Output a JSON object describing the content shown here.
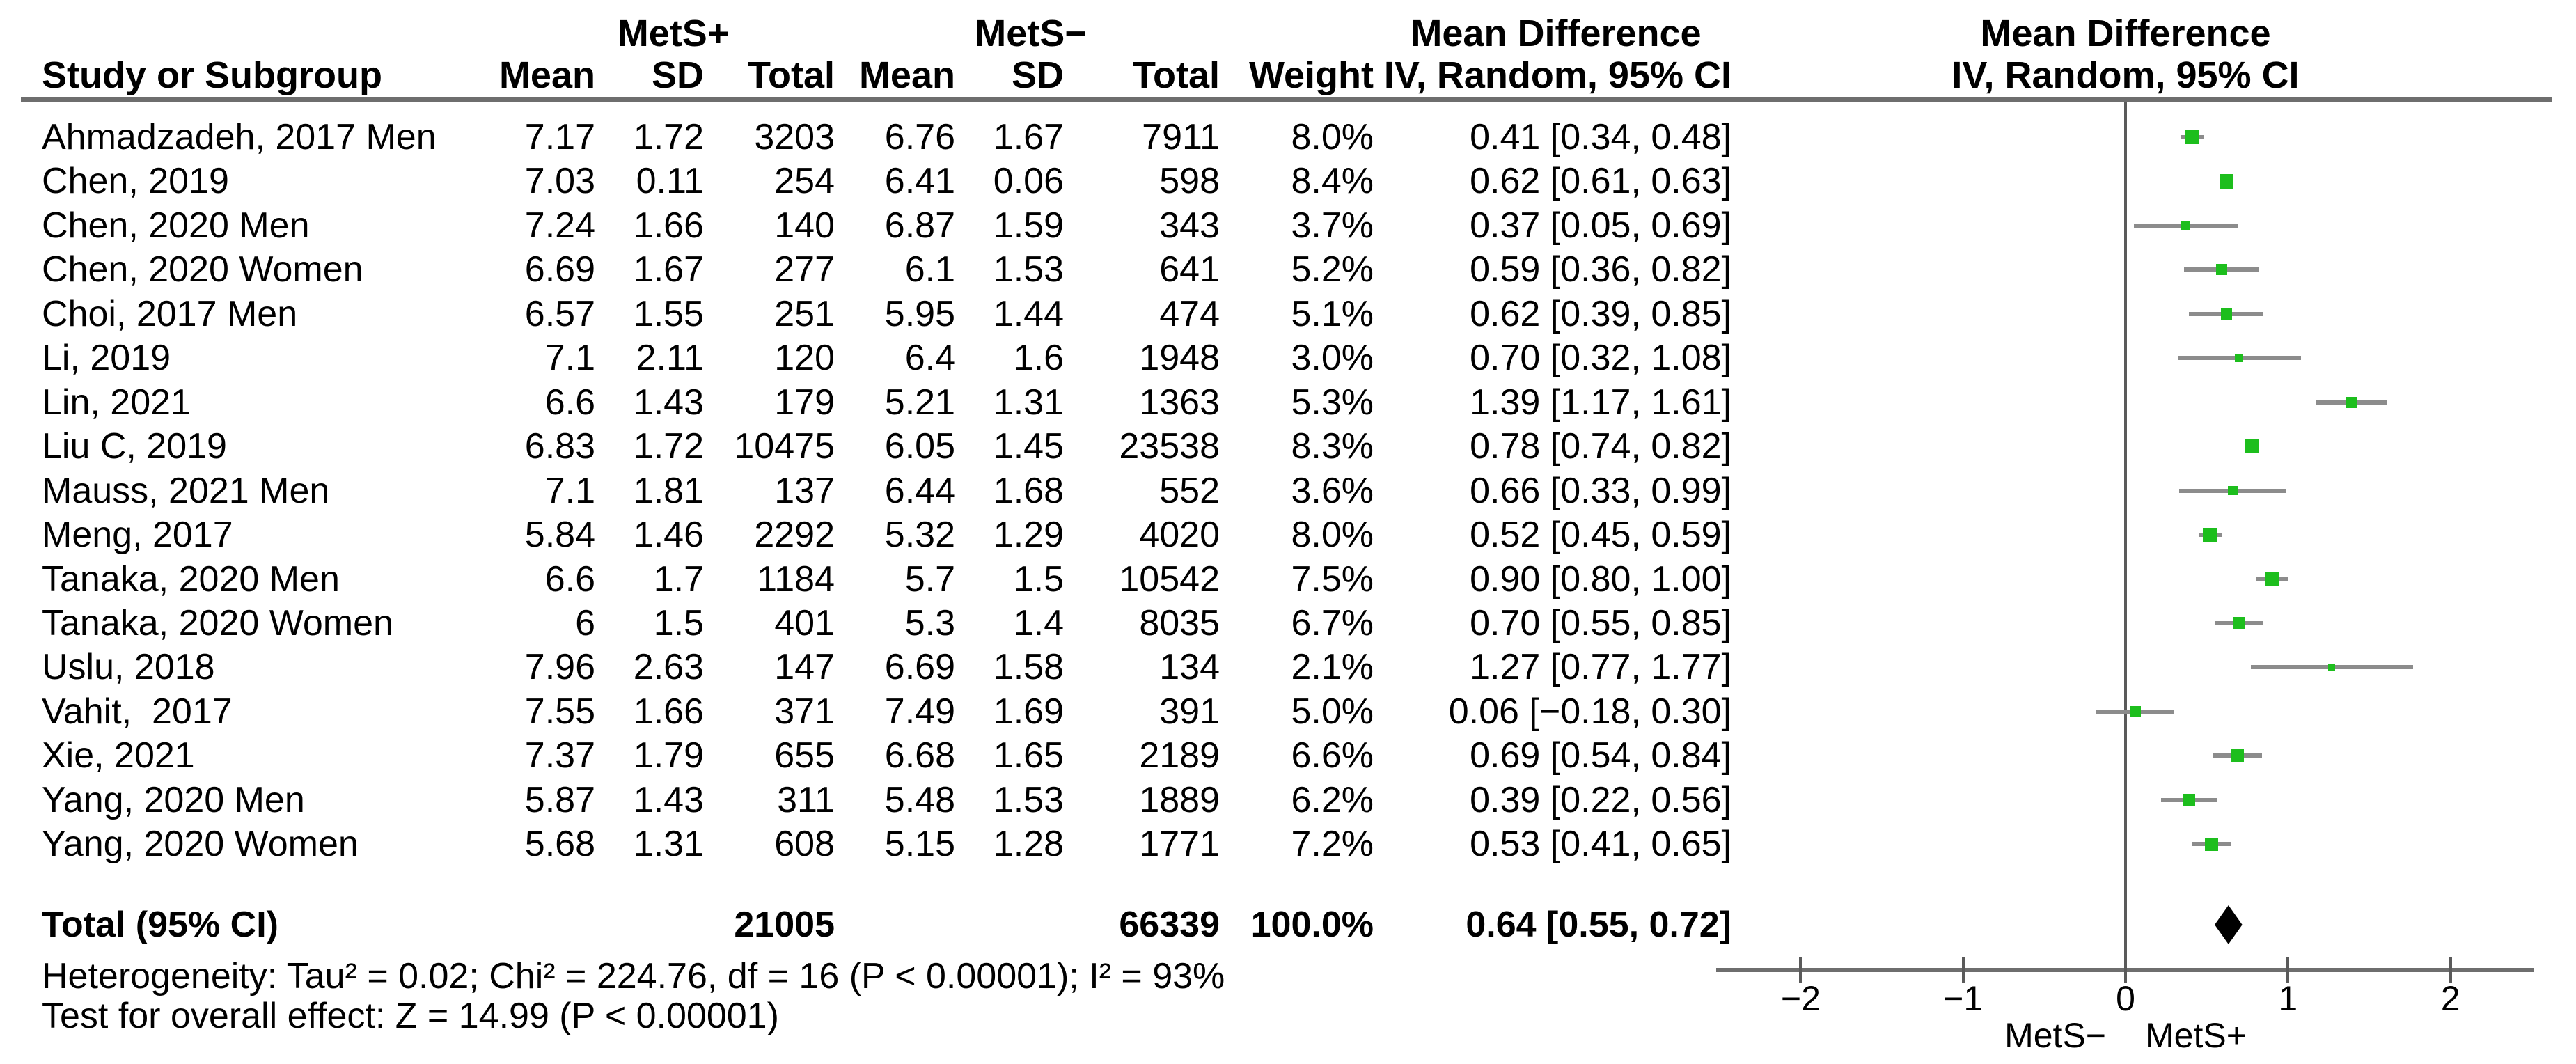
{
  "meta": {
    "marker_color": "#1dbe1d",
    "ci_line_color": "#8c8c8c",
    "rule_color": "#6e6e6e",
    "diamond_color": "#000000",
    "background": "#ffffff"
  },
  "header": {
    "study_col": "Study or Subgroup",
    "group1_label": "MetS+",
    "group2_label": "MetS−",
    "mean_label": "Mean",
    "sd_label": "SD",
    "total_label": "Total",
    "weight_label": "Weight",
    "md_col_line1": "Mean Difference",
    "md_col_line2": "IV, Random, 95% CI",
    "plot_col_line1": "Mean Difference",
    "plot_col_line2": "IV, Random, 95% CI"
  },
  "chart_data": {
    "type": "forest",
    "effect_measure": "Mean Difference, IV, Random, 95% CI",
    "axis": {
      "ticks": [
        -2,
        -1,
        0,
        1,
        2
      ],
      "xlim": [
        -2.5,
        2.5
      ],
      "left_label": "MetS−",
      "right_label": "MetS+",
      "zero_reference": 0
    },
    "studies": [
      {
        "name": "Ahmadzadeh, 2017 Men",
        "mean1": "7.17",
        "sd1": "1.72",
        "total1": "3203",
        "mean2": "6.76",
        "sd2": "1.67",
        "total2": "7911",
        "weight": 8.0,
        "md": 0.41,
        "lo": 0.34,
        "hi": 0.48
      },
      {
        "name": "Chen, 2019",
        "mean1": "7.03",
        "sd1": "0.11",
        "total1": "254",
        "mean2": "6.41",
        "sd2": "0.06",
        "total2": "598",
        "weight": 8.4,
        "md": 0.62,
        "lo": 0.61,
        "hi": 0.63
      },
      {
        "name": "Chen, 2020 Men",
        "mean1": "7.24",
        "sd1": "1.66",
        "total1": "140",
        "mean2": "6.87",
        "sd2": "1.59",
        "total2": "343",
        "weight": 3.7,
        "md": 0.37,
        "lo": 0.05,
        "hi": 0.69
      },
      {
        "name": "Chen, 2020 Women",
        "mean1": "6.69",
        "sd1": "1.67",
        "total1": "277",
        "mean2": "6.1",
        "sd2": "1.53",
        "total2": "641",
        "weight": 5.2,
        "md": 0.59,
        "lo": 0.36,
        "hi": 0.82
      },
      {
        "name": "Choi, 2017 Men",
        "mean1": "6.57",
        "sd1": "1.55",
        "total1": "251",
        "mean2": "5.95",
        "sd2": "1.44",
        "total2": "474",
        "weight": 5.1,
        "md": 0.62,
        "lo": 0.39,
        "hi": 0.85
      },
      {
        "name": "Li, 2019",
        "mean1": "7.1",
        "sd1": "2.11",
        "total1": "120",
        "mean2": "6.4",
        "sd2": "1.6",
        "total2": "1948",
        "weight": 3.0,
        "md": 0.7,
        "lo": 0.32,
        "hi": 1.08
      },
      {
        "name": "Lin, 2021",
        "mean1": "6.6",
        "sd1": "1.43",
        "total1": "179",
        "mean2": "5.21",
        "sd2": "1.31",
        "total2": "1363",
        "weight": 5.3,
        "md": 1.39,
        "lo": 1.17,
        "hi": 1.61
      },
      {
        "name": "Liu C, 2019",
        "mean1": "6.83",
        "sd1": "1.72",
        "total1": "10475",
        "mean2": "6.05",
        "sd2": "1.45",
        "total2": "23538",
        "weight": 8.3,
        "md": 0.78,
        "lo": 0.74,
        "hi": 0.82
      },
      {
        "name": "Mauss, 2021 Men",
        "mean1": "7.1",
        "sd1": "1.81",
        "total1": "137",
        "mean2": "6.44",
        "sd2": "1.68",
        "total2": "552",
        "weight": 3.6,
        "md": 0.66,
        "lo": 0.33,
        "hi": 0.99
      },
      {
        "name": "Meng, 2017",
        "mean1": "5.84",
        "sd1": "1.46",
        "total1": "2292",
        "mean2": "5.32",
        "sd2": "1.29",
        "total2": "4020",
        "weight": 8.0,
        "md": 0.52,
        "lo": 0.45,
        "hi": 0.59
      },
      {
        "name": "Tanaka, 2020 Men",
        "mean1": "6.6",
        "sd1": "1.7",
        "total1": "1184",
        "mean2": "5.7",
        "sd2": "1.5",
        "total2": "10542",
        "weight": 7.5,
        "md": 0.9,
        "lo": 0.8,
        "hi": 1.0
      },
      {
        "name": "Tanaka, 2020 Women",
        "mean1": "6",
        "sd1": "1.5",
        "total1": "401",
        "mean2": "5.3",
        "sd2": "1.4",
        "total2": "8035",
        "weight": 6.7,
        "md": 0.7,
        "lo": 0.55,
        "hi": 0.85
      },
      {
        "name": "Uslu, 2018",
        "mean1": "7.96",
        "sd1": "2.63",
        "total1": "147",
        "mean2": "6.69",
        "sd2": "1.58",
        "total2": "134",
        "weight": 2.1,
        "md": 1.27,
        "lo": 0.77,
        "hi": 1.77
      },
      {
        "name": "Vahit,  2017",
        "mean1": "7.55",
        "sd1": "1.66",
        "total1": "371",
        "mean2": "7.49",
        "sd2": "1.69",
        "total2": "391",
        "weight": 5.0,
        "md": 0.06,
        "lo": -0.18,
        "hi": 0.3
      },
      {
        "name": "Xie, 2021",
        "mean1": "7.37",
        "sd1": "1.79",
        "total1": "655",
        "mean2": "6.68",
        "sd2": "1.65",
        "total2": "2189",
        "weight": 6.6,
        "md": 0.69,
        "lo": 0.54,
        "hi": 0.84
      },
      {
        "name": "Yang, 2020 Men",
        "mean1": "5.87",
        "sd1": "1.43",
        "total1": "311",
        "mean2": "5.48",
        "sd2": "1.53",
        "total2": "1889",
        "weight": 6.2,
        "md": 0.39,
        "lo": 0.22,
        "hi": 0.56
      },
      {
        "name": "Yang, 2020 Women",
        "mean1": "5.68",
        "sd1": "1.31",
        "total1": "608",
        "mean2": "5.15",
        "sd2": "1.28",
        "total2": "1771",
        "weight": 7.2,
        "md": 0.53,
        "lo": 0.41,
        "hi": 0.65
      }
    ],
    "total": {
      "label": "Total (95% CI)",
      "total1": "21005",
      "total2": "66339",
      "weight": 100.0,
      "md": 0.64,
      "lo": 0.55,
      "hi": 0.72
    }
  },
  "footer": {
    "heterogeneity": "Heterogeneity: Tau² = 0.02; Chi² = 224.76, df = 16 (P < 0.00001); I² = 93%",
    "overall_effect": "Test for overall effect: Z = 14.99 (P < 0.00001)"
  }
}
